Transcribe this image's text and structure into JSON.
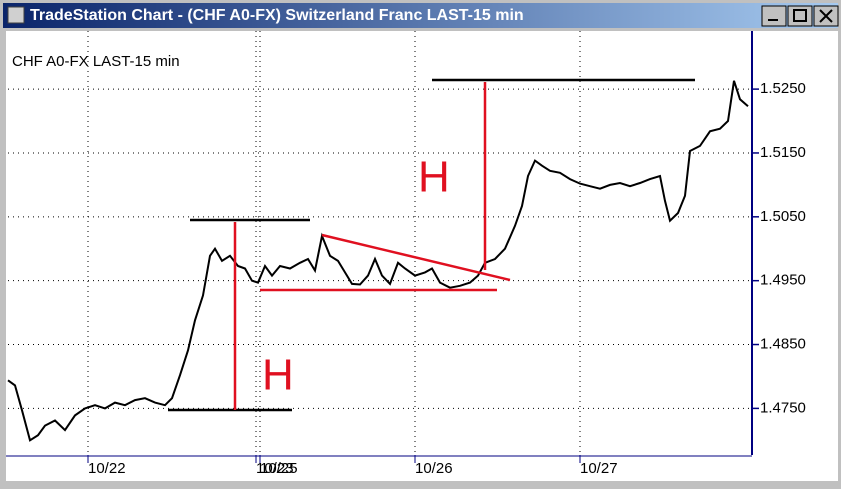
{
  "window_title": "TradeStation Chart - (CHF A0-FX) Switzerland Franc LAST-15 min",
  "chart_data": {
    "type": "line",
    "title": "CHF A0-FX LAST-15 min",
    "annotations": [
      "H",
      "H"
    ],
    "color": "#000000",
    "grid": true,
    "x": [
      0,
      7,
      14,
      22,
      30,
      37,
      47,
      57,
      67,
      77,
      87,
      97,
      107,
      117,
      127,
      137,
      147,
      157,
      164,
      172,
      180,
      187,
      195,
      202,
      207,
      214,
      222,
      230,
      237,
      244,
      250,
      257,
      264,
      272,
      282,
      292,
      300,
      307,
      314,
      322,
      330,
      337,
      344,
      352,
      360,
      367,
      374,
      382,
      390,
      397,
      407,
      417,
      424,
      432,
      442,
      452,
      462,
      470,
      477,
      487,
      497,
      507,
      514,
      520,
      527,
      534,
      542,
      552,
      562,
      572,
      582,
      592,
      602,
      612,
      622,
      632,
      642,
      652,
      657,
      662,
      670,
      677,
      682,
      692,
      702,
      712,
      720,
      726,
      732,
      740
    ],
    "values": [
      1.4794,
      1.4786,
      1.4747,
      1.47,
      1.4708,
      1.4723,
      1.4731,
      1.4716,
      1.4739,
      1.475,
      1.4755,
      1.475,
      1.4759,
      1.4755,
      1.4763,
      1.4766,
      1.4759,
      1.4755,
      1.4766,
      1.4802,
      1.4841,
      1.4888,
      1.4927,
      1.4989,
      1.5,
      1.4981,
      1.4989,
      1.4973,
      1.4969,
      1.495,
      1.4947,
      1.4973,
      1.4958,
      1.4973,
      1.4969,
      1.4978,
      1.4984,
      1.4966,
      1.502,
      1.4989,
      1.4981,
      1.4963,
      1.4945,
      1.4944,
      1.4958,
      1.4984,
      1.4958,
      1.4945,
      1.4978,
      1.4969,
      1.4958,
      1.4963,
      1.4969,
      1.4947,
      1.4939,
      1.4942,
      1.4947,
      1.4958,
      1.4978,
      1.4984,
      1.5,
      1.5036,
      1.5067,
      1.5114,
      1.5138,
      1.513,
      1.5122,
      1.5119,
      1.5109,
      1.5102,
      1.5098,
      1.5094,
      1.51,
      1.5103,
      1.5098,
      1.5103,
      1.5109,
      1.5114,
      1.5075,
      1.5044,
      1.5056,
      1.5083,
      1.5153,
      1.5161,
      1.5184,
      1.5188,
      1.52,
      1.5263,
      1.5234,
      1.5223
    ],
    "xlim": [
      0,
      744
    ],
    "xticks": [
      {
        "value": 80,
        "label": "10/22"
      },
      {
        "value": 248,
        "label": "10/23"
      },
      {
        "value": 252,
        "label": "10/25"
      },
      {
        "value": 407,
        "label": "10/26"
      },
      {
        "value": 572,
        "label": "10/27"
      }
    ],
    "ylim": [
      1.4677,
      1.5341
    ],
    "yticks": [
      {
        "value": 1.475,
        "label": "1.4750"
      },
      {
        "value": 1.485,
        "label": "1.4850"
      },
      {
        "value": 1.495,
        "label": "1.4950"
      },
      {
        "value": 1.505,
        "label": "1.5050"
      },
      {
        "value": 1.515,
        "label": "1.5150"
      },
      {
        "value": 1.525,
        "label": "1.5250"
      }
    ]
  }
}
